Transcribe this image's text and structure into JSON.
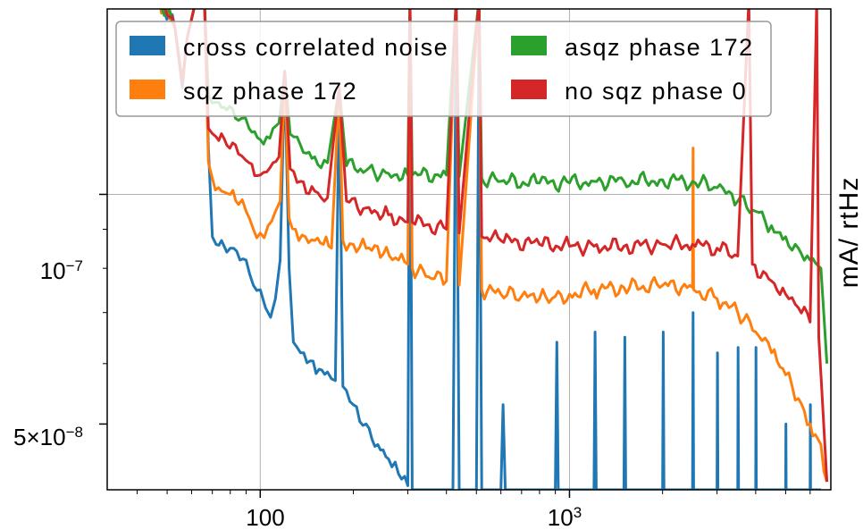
{
  "chart_data": {
    "type": "line",
    "title": "",
    "xlabel": "",
    "ylabel": "mA/ rtHz",
    "xscale": "log",
    "yscale": "log",
    "xlim": [
      32,
      7000
    ],
    "ylim": [
      4.1e-08,
      1.75e-07
    ],
    "grid": true,
    "legend_position": "top",
    "x_tick_labels": [
      "100",
      "10^3"
    ],
    "y_tick_labels": [
      "10^-7",
      "5×10^-8"
    ],
    "series": [
      {
        "name": "cross correlated noise",
        "color": "#1f77b4",
        "points": [
          [
            40,
            1.8e-07
          ],
          [
            47,
            1.8e-07
          ],
          [
            53,
            1.65e-07
          ],
          [
            56,
            1.38e-07
          ],
          [
            58,
            1.6e-07
          ],
          [
            62,
            1.8e-07
          ],
          [
            66,
            1.8e-07
          ],
          [
            68,
            1.15e-07
          ],
          [
            70,
            8.8e-08
          ],
          [
            72,
            8.6e-08
          ],
          [
            75,
            8.7e-08
          ],
          [
            78,
            8.4e-08
          ],
          [
            82,
            8.5e-08
          ],
          [
            86,
            8.2e-08
          ],
          [
            90,
            8.2e-08
          ],
          [
            95,
            7.6e-08
          ],
          [
            100,
            7.5e-08
          ],
          [
            104,
            7.1e-08
          ],
          [
            108,
            6.9e-08
          ],
          [
            112,
            7.3e-08
          ],
          [
            116,
            8.2e-08
          ],
          [
            120,
            1.45e-07
          ],
          [
            124,
            8e-08
          ],
          [
            128,
            6.4e-08
          ],
          [
            135,
            6.2e-08
          ],
          [
            145,
            6.05e-08
          ],
          [
            155,
            5.9e-08
          ],
          [
            165,
            5.85e-08
          ],
          [
            175,
            5.7e-08
          ],
          [
            180,
            1.38e-07
          ],
          [
            185,
            5.6e-08
          ],
          [
            200,
            5.3e-08
          ],
          [
            220,
            5e-08
          ],
          [
            240,
            4.7e-08
          ],
          [
            260,
            4.5e-08
          ],
          [
            280,
            4.3e-08
          ],
          [
            300,
            4.15e-08
          ],
          [
            305,
            1.8e-07
          ],
          [
            310,
            4.1e-08
          ],
          [
            420,
            4.1e-08
          ],
          [
            430,
            1.8e-07
          ],
          [
            440,
            4.1e-08
          ],
          [
            500,
            4.1e-08
          ],
          [
            510,
            1.8e-07
          ],
          [
            520,
            4.1e-08
          ],
          [
            600,
            4.1e-08
          ],
          [
            610,
            5.3e-08
          ],
          [
            620,
            4.1e-08
          ],
          [
            900,
            4.1e-08
          ],
          [
            910,
            6.4e-08
          ],
          [
            920,
            4.1e-08
          ],
          [
            1200,
            4.1e-08
          ],
          [
            1210,
            6.6e-08
          ],
          [
            1220,
            4.1e-08
          ],
          [
            1500,
            4.1e-08
          ],
          [
            1510,
            6.5e-08
          ],
          [
            1520,
            4.1e-08
          ],
          [
            2000,
            4.1e-08
          ],
          [
            2010,
            6.6e-08
          ],
          [
            2020,
            4.1e-08
          ],
          [
            2500,
            4.1e-08
          ],
          [
            2510,
            7e-08
          ],
          [
            2520,
            4.1e-08
          ],
          [
            3000,
            4.1e-08
          ],
          [
            3010,
            6.2e-08
          ],
          [
            3020,
            4.1e-08
          ],
          [
            3500,
            4.1e-08
          ],
          [
            3510,
            6.3e-08
          ],
          [
            3520,
            4.1e-08
          ],
          [
            4000,
            4.1e-08
          ],
          [
            4010,
            6.3e-08
          ],
          [
            4020,
            4.1e-08
          ],
          [
            5000,
            4.1e-08
          ],
          [
            5010,
            5e-08
          ],
          [
            5020,
            4.1e-08
          ],
          [
            6000,
            4.1e-08
          ],
          [
            6010,
            5.3e-08
          ],
          [
            6020,
            4.1e-08
          ],
          [
            6500,
            4.1e-08
          ]
        ]
      },
      {
        "name": "sqz phase 172",
        "color": "#ff7f0e",
        "points": [
          [
            40,
            1.8e-07
          ],
          [
            47,
            1.8e-07
          ],
          [
            53,
            1.65e-07
          ],
          [
            56,
            1.4e-07
          ],
          [
            58,
            1.6e-07
          ],
          [
            62,
            1.8e-07
          ],
          [
            66,
            1.8e-07
          ],
          [
            68,
            1.1e-07
          ],
          [
            70,
            1.05e-07
          ],
          [
            75,
            1.01e-07
          ],
          [
            80,
            1e-07
          ],
          [
            85,
            9.7e-08
          ],
          [
            90,
            9.5e-08
          ],
          [
            95,
            9e-08
          ],
          [
            100,
            8.9e-08
          ],
          [
            106,
            9.1e-08
          ],
          [
            112,
            9.5e-08
          ],
          [
            116,
            9.8e-08
          ],
          [
            120,
            1.45e-07
          ],
          [
            124,
            9.3e-08
          ],
          [
            130,
            9e-08
          ],
          [
            140,
            8.8e-08
          ],
          [
            150,
            8.7e-08
          ],
          [
            160,
            8.6e-08
          ],
          [
            170,
            8.5e-08
          ],
          [
            180,
            1.38e-07
          ],
          [
            185,
            8.7e-08
          ],
          [
            200,
            8.6e-08
          ],
          [
            220,
            8.5e-08
          ],
          [
            250,
            8.35e-08
          ],
          [
            280,
            8.2e-08
          ],
          [
            300,
            8.1e-08
          ],
          [
            305,
            1.8e-07
          ],
          [
            310,
            8e-08
          ],
          [
            350,
            7.8e-08
          ],
          [
            400,
            7.7e-08
          ],
          [
            430,
            1.8e-07
          ],
          [
            440,
            7.6e-08
          ],
          [
            510,
            1.8e-07
          ],
          [
            520,
            7.5e-08
          ],
          [
            600,
            7.4e-08
          ],
          [
            700,
            7.35e-08
          ],
          [
            800,
            7.3e-08
          ],
          [
            900,
            7.35e-08
          ],
          [
            1000,
            7.4e-08
          ],
          [
            1200,
            7.5e-08
          ],
          [
            1500,
            7.55e-08
          ],
          [
            2000,
            7.6e-08
          ],
          [
            2500,
            7.55e-08
          ],
          [
            2510,
            1.15e-07
          ],
          [
            2520,
            7.5e-08
          ],
          [
            3000,
            7.3e-08
          ],
          [
            3500,
            7e-08
          ],
          [
            4000,
            6.6e-08
          ],
          [
            4500,
            6.2e-08
          ],
          [
            5000,
            5.8e-08
          ],
          [
            5500,
            5.4e-08
          ],
          [
            6000,
            5e-08
          ],
          [
            6500,
            4.7e-08
          ],
          [
            6800,
            4.2e-08
          ]
        ]
      },
      {
        "name": "asqz phase 172",
        "color": "#2ca02c",
        "points": [
          [
            40,
            1.8e-07
          ],
          [
            47,
            1.8e-07
          ],
          [
            53,
            1.65e-07
          ],
          [
            56,
            1.4e-07
          ],
          [
            58,
            1.6e-07
          ],
          [
            62,
            1.8e-07
          ],
          [
            66,
            1.8e-07
          ],
          [
            68,
            1.35e-07
          ],
          [
            72,
            1.32e-07
          ],
          [
            78,
            1.29e-07
          ],
          [
            85,
            1.25e-07
          ],
          [
            92,
            1.22e-07
          ],
          [
            100,
            1.18e-07
          ],
          [
            105,
            1.19e-07
          ],
          [
            110,
            1.22e-07
          ],
          [
            115,
            1.24e-07
          ],
          [
            120,
            1.45e-07
          ],
          [
            125,
            1.2e-07
          ],
          [
            135,
            1.16e-07
          ],
          [
            150,
            1.12e-07
          ],
          [
            165,
            1.1e-07
          ],
          [
            180,
            1.38e-07
          ],
          [
            190,
            1.09e-07
          ],
          [
            220,
            1.075e-07
          ],
          [
            260,
            1.065e-07
          ],
          [
            300,
            1.06e-07
          ],
          [
            305,
            1.8e-07
          ],
          [
            310,
            1.06e-07
          ],
          [
            400,
            1.06e-07
          ],
          [
            430,
            1.8e-07
          ],
          [
            440,
            1.055e-07
          ],
          [
            510,
            1.8e-07
          ],
          [
            520,
            1.05e-07
          ],
          [
            600,
            1.04e-07
          ],
          [
            800,
            1.035e-07
          ],
          [
            1000,
            1.035e-07
          ],
          [
            1200,
            1.04e-07
          ],
          [
            1500,
            1.04e-07
          ],
          [
            2000,
            1.045e-07
          ],
          [
            2500,
            1.04e-07
          ],
          [
            3000,
            1.02e-07
          ],
          [
            3500,
            9.8e-08
          ],
          [
            4000,
            9.5e-08
          ],
          [
            4500,
            9.1e-08
          ],
          [
            5000,
            8.8e-08
          ],
          [
            5500,
            8.5e-08
          ],
          [
            6000,
            8.2e-08
          ],
          [
            6500,
            8e-08
          ],
          [
            6800,
            6e-08
          ]
        ]
      },
      {
        "name": "no sqz phase 0",
        "color": "#d62728",
        "points": [
          [
            40,
            1.8e-07
          ],
          [
            47,
            1.8e-07
          ],
          [
            53,
            1.65e-07
          ],
          [
            56,
            1.4e-07
          ],
          [
            58,
            1.6e-07
          ],
          [
            62,
            1.8e-07
          ],
          [
            66,
            1.8e-07
          ],
          [
            68,
            1.22e-07
          ],
          [
            72,
            1.19e-07
          ],
          [
            78,
            1.16e-07
          ],
          [
            85,
            1.13e-07
          ],
          [
            92,
            1.1e-07
          ],
          [
            100,
            1.06e-07
          ],
          [
            105,
            1.07e-07
          ],
          [
            110,
            1.1e-07
          ],
          [
            115,
            1.12e-07
          ],
          [
            120,
            1.45e-07
          ],
          [
            125,
            1.08e-07
          ],
          [
            135,
            1.04e-07
          ],
          [
            150,
            1.01e-07
          ],
          [
            165,
            9.9e-08
          ],
          [
            180,
            1.38e-07
          ],
          [
            190,
            9.8e-08
          ],
          [
            220,
            9.6e-08
          ],
          [
            260,
            9.4e-08
          ],
          [
            300,
            9.2e-08
          ],
          [
            305,
            1.8e-07
          ],
          [
            310,
            9.2e-08
          ],
          [
            400,
            9e-08
          ],
          [
            430,
            1.8e-07
          ],
          [
            440,
            8.9e-08
          ],
          [
            510,
            1.8e-07
          ],
          [
            520,
            8.8e-08
          ],
          [
            600,
            8.7e-08
          ],
          [
            800,
            8.6e-08
          ],
          [
            1000,
            8.55e-08
          ],
          [
            1200,
            8.55e-08
          ],
          [
            1500,
            8.55e-08
          ],
          [
            2000,
            8.6e-08
          ],
          [
            2500,
            8.6e-08
          ],
          [
            3000,
            8.5e-08
          ],
          [
            3500,
            8.3e-08
          ],
          [
            3800,
            1.8e-07
          ],
          [
            3900,
            8.1e-08
          ],
          [
            4500,
            7.7e-08
          ],
          [
            5000,
            7.4e-08
          ],
          [
            5500,
            7.1e-08
          ],
          [
            6000,
            6.8e-08
          ],
          [
            6300,
            1.8e-07
          ],
          [
            6400,
            6.5e-08
          ],
          [
            6800,
            4.2e-08
          ]
        ]
      }
    ]
  }
}
